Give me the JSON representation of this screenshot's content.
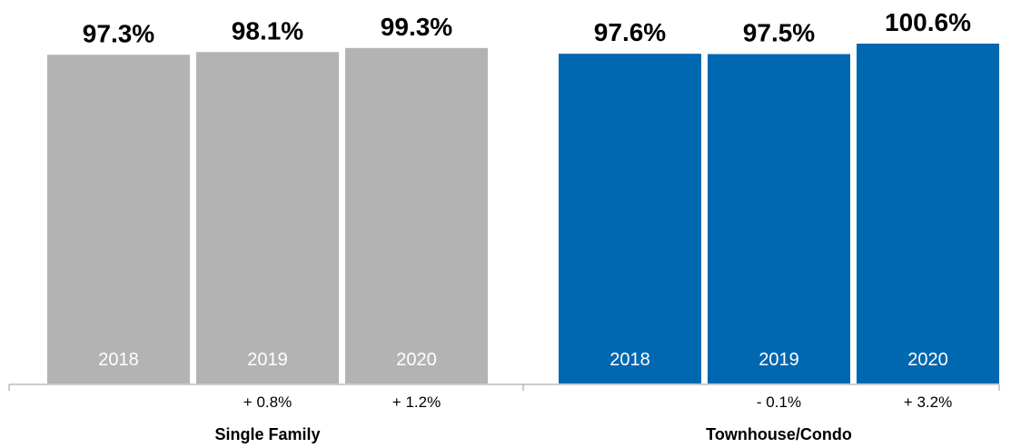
{
  "chart_data": {
    "type": "bar",
    "categories": [
      "2018",
      "2019",
      "2020"
    ],
    "series": [
      {
        "name": "Single Family",
        "color": "#b3b3b3",
        "values": [
          97.3,
          98.1,
          99.3
        ],
        "value_labels": [
          "97.3%",
          "98.1%",
          "99.3%"
        ],
        "change_labels": [
          null,
          "+ 0.8%",
          "+ 1.2%"
        ]
      },
      {
        "name": "Townhouse/Condo",
        "color": "#0067b1",
        "values": [
          97.6,
          97.5,
          100.6
        ],
        "value_labels": [
          "97.6%",
          "97.5%",
          "100.6%"
        ],
        "change_labels": [
          null,
          "- 0.1%",
          "+ 3.2%"
        ]
      }
    ]
  }
}
